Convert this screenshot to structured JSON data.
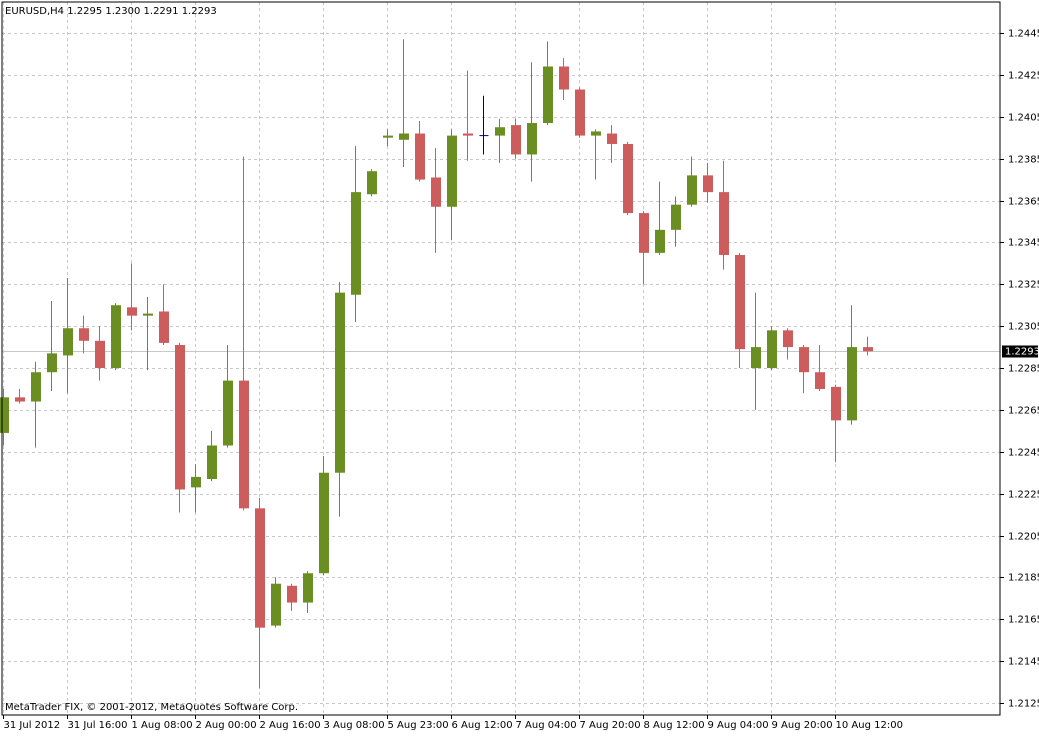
{
  "chart_data": {
    "type": "candlestick",
    "title": "EURUSD,H4  1.2295 1.2300 1.2291 1.2293",
    "annotation": "MetaTrader FIX, © 2001-2012, MetaQuotes Software Corp.",
    "categories": [
      "31 Jul 2012",
      null,
      null,
      null,
      "31 Jul 16:00",
      null,
      null,
      null,
      "1 Aug 08:00",
      null,
      null,
      null,
      "2 Aug 00:00",
      null,
      null,
      null,
      "2 Aug 16:00",
      null,
      null,
      null,
      "3 Aug 08:00",
      null,
      null,
      null,
      "5 Aug 23:00",
      null,
      null,
      null,
      "6 Aug 12:00",
      null,
      null,
      null,
      "7 Aug 04:00",
      null,
      null,
      null,
      "7 Aug 20:00",
      null,
      null,
      null,
      "8 Aug 12:00",
      null,
      null,
      null,
      "9 Aug 04:00",
      null,
      null,
      null,
      "9 Aug 20:00",
      null,
      null,
      null,
      "10 Aug 12:00",
      null,
      null
    ],
    "open": [
      1.2254,
      1.2271,
      1.2269,
      1.2283,
      1.2291,
      1.2304,
      1.2298,
      1.2285,
      1.2314,
      1.231,
      1.2312,
      1.2296,
      1.2228,
      1.2232,
      1.2248,
      1.2279,
      1.2218,
      1.2162,
      1.2181,
      1.2173,
      1.2187,
      1.2235,
      1.232,
      1.2368,
      1.2395,
      1.2394,
      1.2397,
      1.2376,
      1.2362,
      1.2397,
      1.2396,
      1.2396,
      1.2401,
      1.2387,
      1.2402,
      1.2429,
      1.2418,
      1.2396,
      1.2397,
      1.2392,
      1.2359,
      1.234,
      1.2351,
      1.2363,
      1.2377,
      1.2369,
      1.2339,
      1.2285,
      1.2285,
      1.2303,
      1.2295,
      1.2283,
      1.2276,
      1.226,
      1.2295
    ],
    "high": [
      1.2275,
      1.2275,
      1.2288,
      1.2317,
      1.2328,
      1.231,
      1.2305,
      1.2316,
      1.2335,
      1.2319,
      1.2325,
      1.2297,
      1.2239,
      1.2255,
      1.2296,
      1.2386,
      1.2223,
      1.2185,
      1.2182,
      1.2188,
      1.2243,
      1.2326,
      1.2391,
      1.238,
      1.2399,
      1.2442,
      1.2403,
      1.239,
      1.2399,
      1.2427,
      1.2415,
      1.2404,
      1.2404,
      1.2431,
      1.2441,
      1.2433,
      1.2419,
      1.2399,
      1.2401,
      1.2393,
      1.236,
      1.2374,
      1.2367,
      1.2386,
      1.2383,
      1.2384,
      1.234,
      1.2321,
      1.2305,
      1.2304,
      1.2296,
      1.2296,
      1.2277,
      1.2315,
      1.23
    ],
    "low": [
      1.2248,
      1.2268,
      1.2247,
      1.2274,
      1.2273,
      1.2292,
      1.2279,
      1.2284,
      1.2303,
      1.2284,
      1.2296,
      1.2216,
      1.2216,
      1.2231,
      1.2247,
      1.2217,
      1.2132,
      1.2161,
      1.2169,
      1.2168,
      1.2186,
      1.2214,
      1.2307,
      1.2367,
      1.2391,
      1.2381,
      1.2374,
      1.234,
      1.2346,
      1.2384,
      1.2387,
      1.2383,
      1.2385,
      1.2374,
      1.2401,
      1.2413,
      1.2395,
      1.2375,
      1.2383,
      1.2358,
      1.2325,
      1.2339,
      1.2343,
      1.2362,
      1.2364,
      1.2332,
      1.2285,
      1.2265,
      1.2284,
      1.2289,
      1.2273,
      1.2274,
      1.224,
      1.2258,
      1.2291
    ],
    "close": [
      1.2271,
      1.2269,
      1.2283,
      1.2292,
      1.2304,
      1.2298,
      1.2285,
      1.2315,
      1.231,
      1.2311,
      1.2297,
      1.2227,
      1.2233,
      1.2248,
      1.2279,
      1.2218,
      1.2161,
      1.2182,
      1.2173,
      1.2187,
      1.2235,
      1.2321,
      1.2369,
      1.2379,
      1.2396,
      1.2397,
      1.2375,
      1.2362,
      1.2396,
      1.2396,
      1.2396,
      1.24,
      1.2387,
      1.2402,
      1.2429,
      1.2418,
      1.2396,
      1.2398,
      1.2392,
      1.2359,
      1.234,
      1.2351,
      1.2363,
      1.2377,
      1.2369,
      1.2339,
      1.2294,
      1.2295,
      1.2303,
      1.2295,
      1.2283,
      1.2275,
      1.226,
      1.2295,
      1.2293
    ],
    "up_color": "#6b8e23",
    "down_color": "#cd5c5c",
    "doji_color": "#000080",
    "current_price": {
      "value": 1.2293,
      "label": "1.2293"
    },
    "ylim": [
      1.21193,
      1.24598
    ],
    "yticks": [
      1.2125,
      1.2145,
      1.2165,
      1.2185,
      1.2205,
      1.2225,
      1.2245,
      1.2265,
      1.2285,
      1.2305,
      1.2325,
      1.2345,
      1.2365,
      1.2385,
      1.2405,
      1.2425,
      1.2445
    ],
    "grid": true
  }
}
